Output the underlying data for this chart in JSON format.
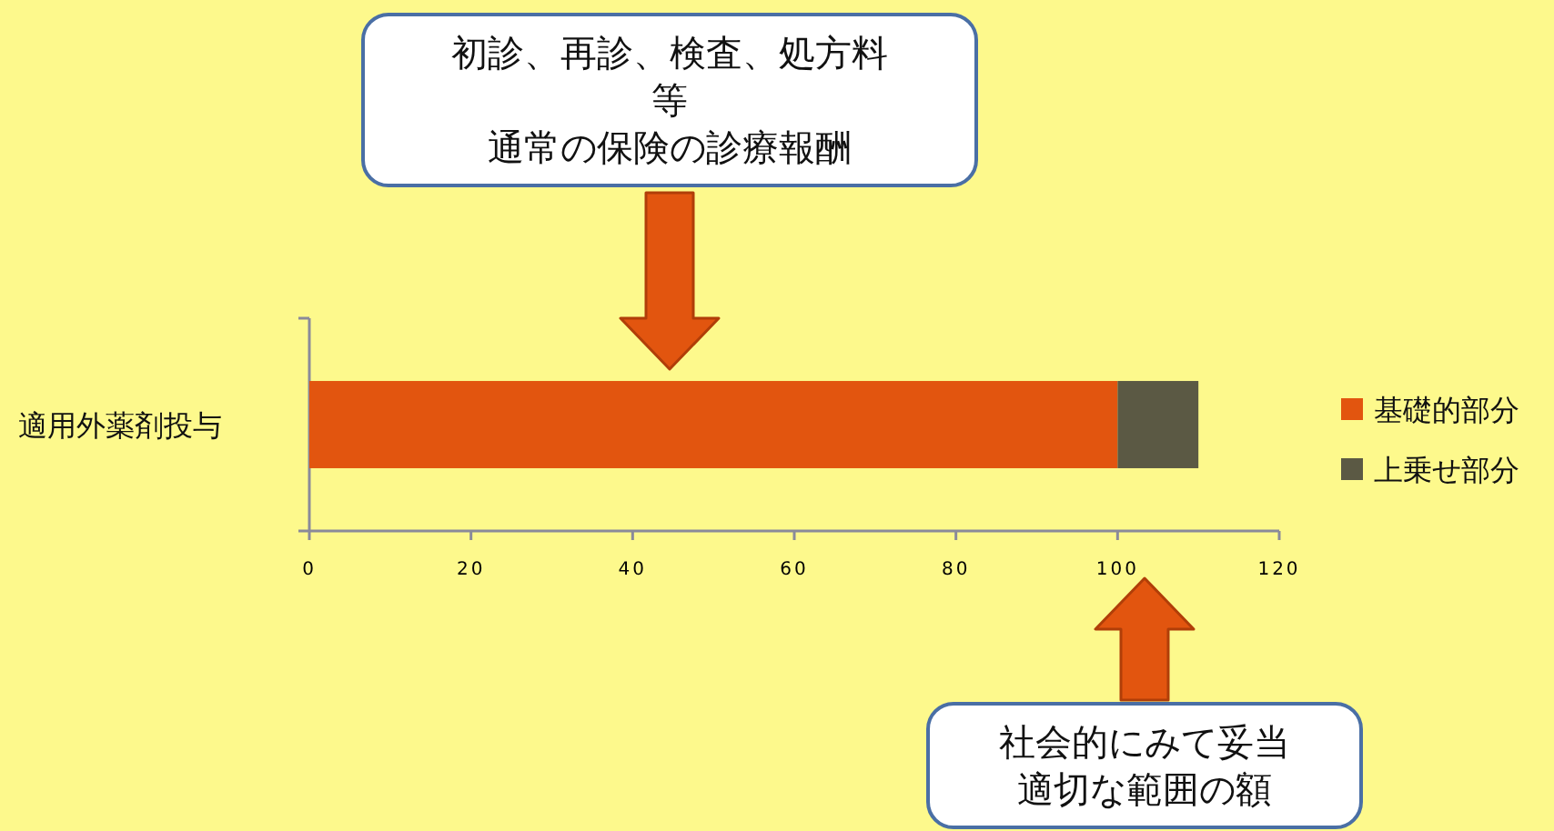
{
  "chart_data": {
    "type": "bar",
    "orientation": "horizontal",
    "stacked": true,
    "categories": [
      "適用外薬剤投与"
    ],
    "series": [
      {
        "name": "基礎的部分",
        "color": "#e2550f",
        "values": [
          100
        ]
      },
      {
        "name": "上乗せ部分",
        "color": "#5b5944",
        "values": [
          10
        ]
      }
    ],
    "xlim": [
      0,
      120
    ],
    "xticks": [
      0,
      20,
      40,
      60,
      80,
      100,
      120
    ],
    "legend": "right",
    "annotations": [
      "初診、再診、検査、処方料等",
      "通常の保険の診療報酬",
      "社会的にみて妥当",
      "適切な範囲の額"
    ]
  }
}
